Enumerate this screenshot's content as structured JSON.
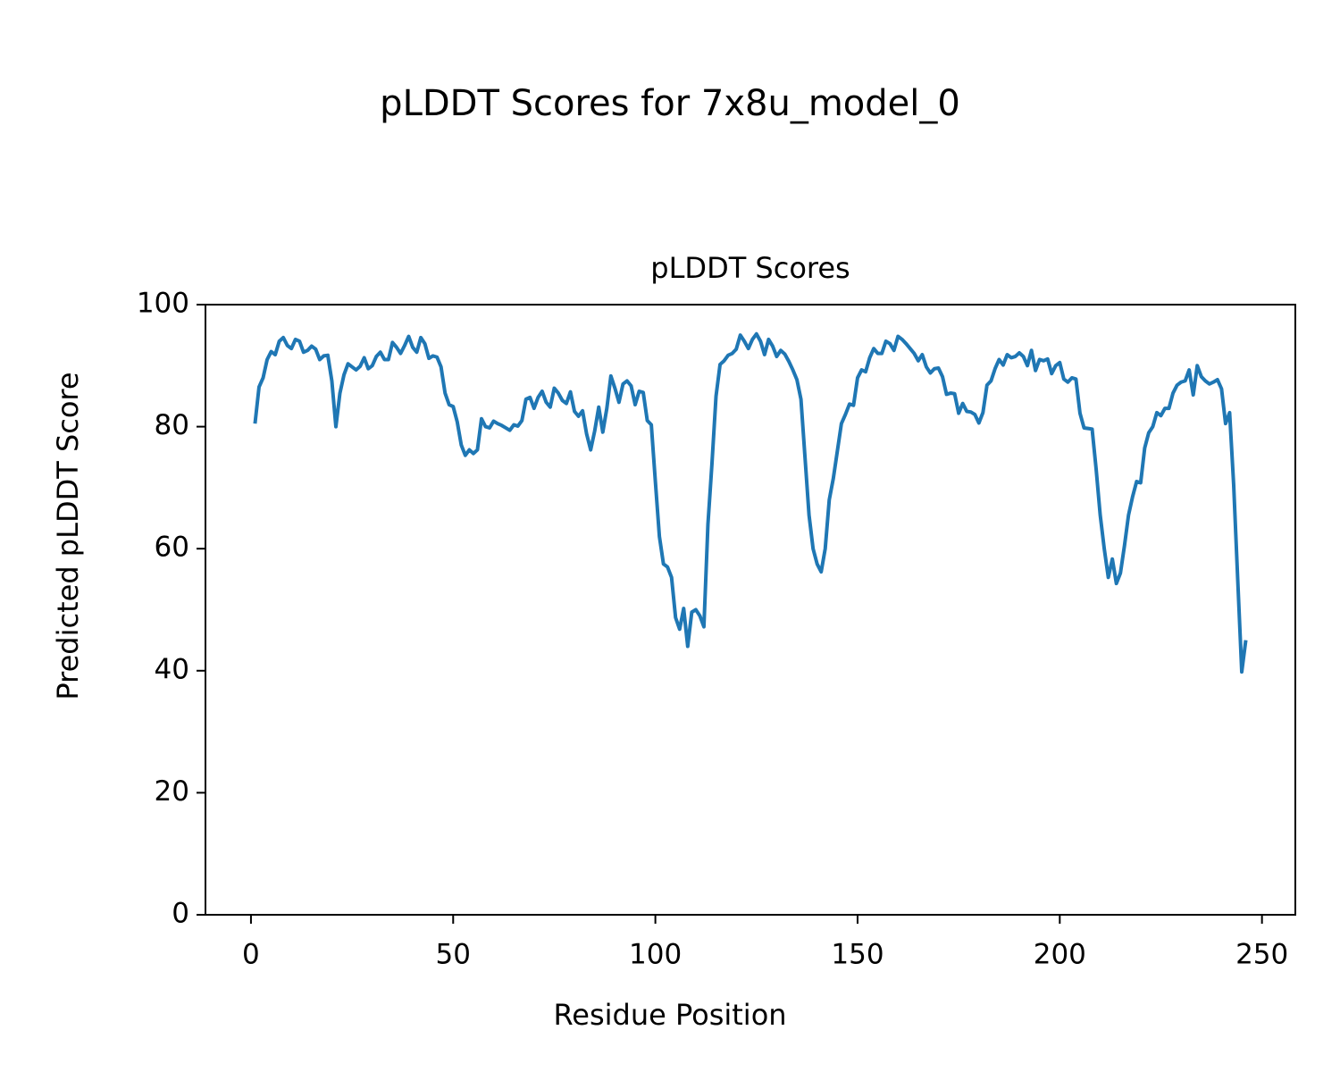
{
  "chart_data": {
    "type": "line",
    "suptitle": "pLDDT Scores for 7x8u_model_0",
    "title": "pLDDT Scores",
    "xlabel": "Residue Position",
    "ylabel": "Predicted pLDDT Score",
    "color": "#1f77b4",
    "x": [
      1,
      2,
      3,
      4,
      5,
      6,
      7,
      8,
      9,
      10,
      11,
      12,
      13,
      14,
      15,
      16,
      17,
      18,
      19,
      20,
      21,
      22,
      23,
      24,
      25,
      26,
      27,
      28,
      29,
      30,
      31,
      32,
      33,
      34,
      35,
      36,
      37,
      38,
      39,
      40,
      41,
      42,
      43,
      44,
      45,
      46,
      47,
      48,
      49,
      50,
      51,
      52,
      53,
      54,
      55,
      56,
      57,
      58,
      59,
      60,
      61,
      62,
      63,
      64,
      65,
      66,
      67,
      68,
      69,
      70,
      71,
      72,
      73,
      74,
      75,
      76,
      77,
      78,
      79,
      80,
      81,
      82,
      83,
      84,
      85,
      86,
      87,
      88,
      89,
      90,
      91,
      92,
      93,
      94,
      95,
      96,
      97,
      98,
      99,
      100,
      101,
      102,
      103,
      104,
      105,
      106,
      107,
      108,
      109,
      110,
      111,
      112,
      113,
      114,
      115,
      116,
      117,
      118,
      119,
      120,
      121,
      122,
      123,
      124,
      125,
      126,
      127,
      128,
      129,
      130,
      131,
      132,
      133,
      134,
      135,
      136,
      137,
      138,
      139,
      140,
      141,
      142,
      143,
      144,
      145,
      146,
      147,
      148,
      149,
      150,
      151,
      152,
      153,
      154,
      155,
      156,
      157,
      158,
      159,
      160,
      161,
      162,
      163,
      164,
      165,
      166,
      167,
      168,
      169,
      170,
      171,
      172,
      173,
      174,
      175,
      176,
      177,
      178,
      179,
      180,
      181,
      182,
      183,
      184,
      185,
      186,
      187,
      188,
      189,
      190,
      191,
      192,
      193,
      194,
      195,
      196,
      197,
      198,
      199,
      200,
      201,
      202,
      203,
      204,
      205,
      206,
      207,
      208,
      209,
      210,
      211,
      212,
      213,
      214,
      215,
      216,
      217,
      218,
      219,
      220,
      221,
      222,
      223,
      224,
      225,
      226,
      227,
      228,
      229,
      230,
      231,
      232,
      233,
      234,
      235,
      236,
      237,
      238,
      239,
      240,
      241,
      242,
      243,
      244,
      245,
      246
    ],
    "values": [
      80.5,
      86.5,
      88,
      91,
      92.3,
      91.8,
      94,
      94.6,
      93.3,
      92.8,
      94.3,
      94,
      92.2,
      92.5,
      93.2,
      92.7,
      91,
      91.6,
      91.7,
      87.5,
      80,
      85.5,
      88.5,
      90.3,
      89.8,
      89.3,
      89.9,
      91.3,
      89.5,
      90,
      91.5,
      92.2,
      91,
      91,
      93.8,
      93,
      92,
      93.3,
      94.8,
      93,
      92.2,
      94.6,
      93.6,
      91.2,
      91.6,
      91.4,
      89.8,
      85.5,
      83.6,
      83.3,
      80.8,
      77,
      75.3,
      76.2,
      75.6,
      76.2,
      81.3,
      80,
      79.8,
      80.9,
      80.5,
      80.2,
      79.8,
      79.4,
      80.3,
      80.1,
      81,
      84.5,
      84.8,
      83,
      84.8,
      85.8,
      84,
      83.2,
      86.3,
      85.5,
      84.3,
      83.8,
      85.7,
      82.5,
      81.7,
      82.6,
      78.8,
      76.2,
      79.3,
      83.2,
      79.1,
      83,
      88.3,
      86.3,
      84,
      87,
      87.5,
      86.7,
      83.6,
      85.8,
      85.6,
      81,
      80.3,
      71,
      62,
      57.5,
      57,
      55.3,
      48.7,
      46.8,
      50.2,
      44,
      49.6,
      50,
      49,
      47.2,
      64,
      74,
      85,
      90.2,
      90.8,
      91.7,
      92,
      92.7,
      95,
      94,
      92.8,
      94.3,
      95.2,
      94,
      91.8,
      94.3,
      93.2,
      91.5,
      92.5,
      91.9,
      90.7,
      89.3,
      87.7,
      84.5,
      75,
      65.5,
      60,
      57.5,
      56.2,
      60,
      68,
      71.5,
      76,
      80.5,
      82,
      83.7,
      83.5,
      88,
      89.3,
      89,
      91.3,
      92.8,
      92,
      92,
      94,
      93.6,
      92.5,
      94.8,
      94.3,
      93.6,
      92.8,
      92,
      90.8,
      91.8,
      89.8,
      88.8,
      89.5,
      89.6,
      88.2,
      85.3,
      85.5,
      85.4,
      82.2,
      83.8,
      82.5,
      82.4,
      82,
      80.6,
      82.3,
      86.8,
      87.5,
      89.5,
      91,
      90.1,
      91.8,
      91.3,
      91.5,
      92.1,
      91.5,
      90,
      92.5,
      89.2,
      91,
      90.8,
      91.1,
      88.7,
      90,
      90.5,
      87.8,
      87.3,
      88,
      87.8,
      82.2,
      79.8,
      79.7,
      79.6,
      73,
      65.5,
      60,
      55.3,
      58.3,
      54.3,
      56,
      60.5,
      65.5,
      68.5,
      71,
      70.8,
      76.5,
      79,
      80,
      82.3,
      81.8,
      83,
      83,
      85.5,
      86.8,
      87.3,
      87.5,
      89.3,
      85.2,
      90,
      88.2,
      87.5,
      87,
      87.3,
      87.7,
      86.2,
      80.5,
      82.3,
      70.5,
      55,
      39.8,
      45
    ],
    "xlim": [
      -11.25,
      258.25
    ],
    "xticks": [
      0,
      50,
      100,
      150,
      200,
      250
    ],
    "ylim": [
      0,
      100
    ],
    "yticks": [
      0,
      20,
      40,
      60,
      80,
      100
    ]
  }
}
